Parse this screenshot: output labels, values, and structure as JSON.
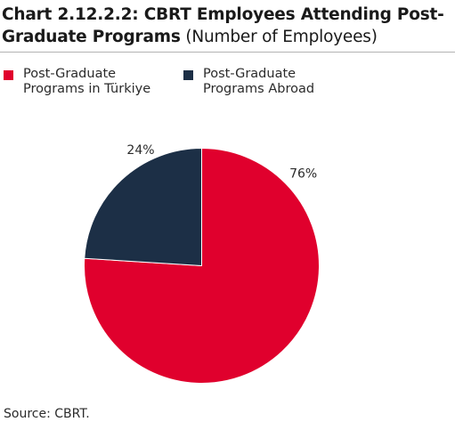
{
  "title": {
    "bold": "Chart 2.12.2.2: CBRT Employees Attending Post-Graduate Programs",
    "light": "(Number of Employees)"
  },
  "legend": [
    {
      "label": "Post-Graduate Programs in Türkiye",
      "color": "#e0002d"
    },
    {
      "label": "Post-Graduate Programs Abroad",
      "color": "#1c2f46"
    }
  ],
  "chart_data": {
    "type": "pie",
    "slices": [
      {
        "name": "Post-Graduate Programs in Türkiye",
        "value": 76,
        "label": "76%",
        "color": "#e0002d"
      },
      {
        "name": "Post-Graduate Programs Abroad",
        "value": 24,
        "label": "24%",
        "color": "#1c2f46"
      }
    ],
    "legend_position": "top"
  },
  "source": "Source: CBRT."
}
